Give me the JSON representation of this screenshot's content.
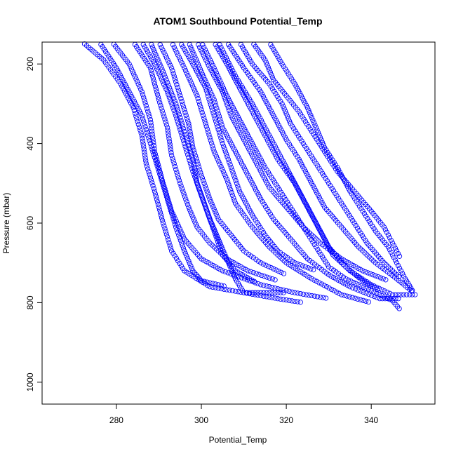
{
  "chart_data": {
    "type": "scatter",
    "title": "ATOM1 Southbound Potential_Temp",
    "xlabel": "Potential_Temp",
    "ylabel": "Pressure (mbar)",
    "xlim": [
      262.5,
      355
    ],
    "ylim": [
      1055,
      145
    ],
    "y_reversed": true,
    "x_ticks": [
      280,
      300,
      320,
      340
    ],
    "y_ticks": [
      200,
      400,
      600,
      800,
      1000
    ],
    "grid": false,
    "legend": "none",
    "marker": "open-circle",
    "color": "#0000ff",
    "series_note": "many vertical profiles; values approximated",
    "series": [
      {
        "points": [
          [
            272,
            145
          ],
          [
            277,
            190
          ],
          [
            281,
            250
          ],
          [
            284,
            310
          ],
          [
            286,
            380
          ],
          [
            287,
            450
          ],
          [
            289,
            520
          ],
          [
            291,
            600
          ],
          [
            293,
            670
          ],
          [
            296,
            720
          ],
          [
            302,
            760
          ],
          [
            310,
            775
          ],
          [
            318,
            790
          ],
          [
            324,
            800
          ]
        ]
      },
      {
        "points": [
          [
            279,
            145
          ],
          [
            283,
            200
          ],
          [
            286,
            270
          ],
          [
            288,
            340
          ],
          [
            289,
            420
          ],
          [
            291,
            500
          ],
          [
            293,
            570
          ],
          [
            296,
            640
          ],
          [
            300,
            690
          ],
          [
            305,
            720
          ],
          [
            314,
            755
          ],
          [
            322,
            775
          ],
          [
            330,
            790
          ]
        ]
      },
      {
        "points": [
          [
            284,
            145
          ],
          [
            288,
            210
          ],
          [
            290,
            290
          ],
          [
            292,
            360
          ],
          [
            293,
            430
          ],
          [
            295,
            500
          ],
          [
            297,
            560
          ],
          [
            299,
            610
          ],
          [
            302,
            650
          ],
          [
            306,
            690
          ],
          [
            311,
            720
          ],
          [
            318,
            745
          ]
        ]
      },
      {
        "points": [
          [
            290,
            145
          ],
          [
            293,
            210
          ],
          [
            295,
            280
          ],
          [
            297,
            350
          ],
          [
            298,
            410
          ],
          [
            300,
            480
          ],
          [
            302,
            540
          ],
          [
            304,
            590
          ],
          [
            307,
            630
          ],
          [
            310,
            670
          ],
          [
            314,
            700
          ],
          [
            320,
            730
          ]
        ]
      },
      {
        "points": [
          [
            286,
            145
          ],
          [
            289,
            200
          ],
          [
            292,
            270
          ],
          [
            294,
            330
          ],
          [
            296,
            400
          ],
          [
            298,
            470
          ],
          [
            300,
            530
          ],
          [
            302,
            590
          ],
          [
            304,
            640
          ],
          [
            306,
            690
          ],
          [
            308,
            740
          ],
          [
            310,
            775
          ],
          [
            320,
            775
          ]
        ]
      },
      {
        "points": [
          [
            295,
            145
          ],
          [
            298,
            200
          ],
          [
            301,
            260
          ],
          [
            303,
            330
          ],
          [
            305,
            400
          ],
          [
            307,
            460
          ],
          [
            309,
            520
          ],
          [
            312,
            580
          ],
          [
            315,
            630
          ],
          [
            318,
            670
          ],
          [
            322,
            700
          ],
          [
            327,
            720
          ]
        ]
      },
      {
        "points": [
          [
            299,
            145
          ],
          [
            302,
            210
          ],
          [
            305,
            270
          ],
          [
            307,
            330
          ],
          [
            310,
            390
          ],
          [
            313,
            450
          ],
          [
            316,
            510
          ],
          [
            320,
            560
          ],
          [
            324,
            610
          ],
          [
            328,
            650
          ],
          [
            333,
            690
          ],
          [
            338,
            720
          ],
          [
            344,
            745
          ]
        ]
      },
      {
        "points": [
          [
            303,
            145
          ],
          [
            306,
            200
          ],
          [
            309,
            260
          ],
          [
            312,
            320
          ],
          [
            315,
            380
          ],
          [
            318,
            440
          ],
          [
            322,
            500
          ],
          [
            325,
            560
          ],
          [
            328,
            620
          ],
          [
            331,
            680
          ],
          [
            335,
            720
          ],
          [
            340,
            755
          ],
          [
            345,
            780
          ],
          [
            351,
            780
          ]
        ]
      },
      {
        "points": [
          [
            306,
            145
          ],
          [
            310,
            210
          ],
          [
            314,
            270
          ],
          [
            317,
            330
          ],
          [
            320,
            390
          ],
          [
            323,
            440
          ],
          [
            326,
            500
          ],
          [
            329,
            560
          ],
          [
            333,
            610
          ],
          [
            337,
            660
          ],
          [
            341,
            700
          ],
          [
            346,
            740
          ],
          [
            350,
            775
          ]
        ]
      },
      {
        "points": [
          [
            309,
            145
          ],
          [
            312,
            200
          ],
          [
            316,
            250
          ],
          [
            319,
            300
          ],
          [
            321,
            350
          ],
          [
            324,
            400
          ],
          [
            327,
            450
          ],
          [
            330,
            500
          ],
          [
            333,
            550
          ],
          [
            336,
            600
          ],
          [
            339,
            650
          ],
          [
            343,
            700
          ],
          [
            347,
            740
          ]
        ]
      },
      {
        "points": [
          [
            312,
            145
          ],
          [
            315,
            190
          ],
          [
            317,
            240
          ],
          [
            320,
            280
          ],
          [
            323,
            320
          ],
          [
            326,
            370
          ],
          [
            329,
            420
          ],
          [
            332,
            470
          ],
          [
            336,
            520
          ],
          [
            340,
            570
          ],
          [
            343,
            610
          ],
          [
            345,
            650
          ],
          [
            347,
            690
          ]
        ]
      },
      {
        "points": [
          [
            316,
            145
          ],
          [
            319,
            200
          ],
          [
            322,
            250
          ],
          [
            325,
            310
          ],
          [
            327,
            360
          ],
          [
            329,
            410
          ],
          [
            332,
            460
          ],
          [
            335,
            520
          ],
          [
            338,
            570
          ],
          [
            341,
            620
          ],
          [
            344,
            660
          ],
          [
            346,
            700
          ],
          [
            348,
            740
          ],
          [
            350,
            775
          ]
        ]
      },
      {
        "points": [
          [
            300,
            145
          ],
          [
            303,
            210
          ],
          [
            306,
            280
          ],
          [
            309,
            340
          ],
          [
            312,
            400
          ],
          [
            315,
            460
          ],
          [
            318,
            510
          ],
          [
            321,
            560
          ],
          [
            324,
            610
          ],
          [
            327,
            660
          ],
          [
            330,
            710
          ],
          [
            334,
            740
          ],
          [
            340,
            770
          ],
          [
            345,
            795
          ],
          [
            347,
            820
          ]
        ]
      },
      {
        "points": [
          [
            293,
            145
          ],
          [
            296,
            210
          ],
          [
            299,
            280
          ],
          [
            301,
            350
          ],
          [
            303,
            420
          ],
          [
            306,
            490
          ],
          [
            308,
            550
          ],
          [
            312,
            610
          ],
          [
            316,
            660
          ],
          [
            320,
            700
          ],
          [
            326,
            740
          ],
          [
            333,
            780
          ],
          [
            340,
            800
          ]
        ]
      },
      {
        "points": [
          [
            297,
            145
          ],
          [
            300,
            220
          ],
          [
            303,
            290
          ],
          [
            305,
            360
          ],
          [
            308,
            420
          ],
          [
            311,
            480
          ],
          [
            314,
            540
          ],
          [
            317,
            590
          ],
          [
            321,
            640
          ],
          [
            325,
            690
          ],
          [
            330,
            730
          ],
          [
            335,
            760
          ],
          [
            342,
            790
          ],
          [
            347,
            790
          ]
        ]
      },
      {
        "points": [
          [
            276,
            145
          ],
          [
            280,
            210
          ],
          [
            283,
            270
          ],
          [
            286,
            330
          ],
          [
            288,
            400
          ],
          [
            290,
            470
          ],
          [
            292,
            540
          ],
          [
            294,
            610
          ],
          [
            296,
            670
          ],
          [
            298,
            720
          ],
          [
            300,
            745
          ],
          [
            306,
            760
          ]
        ]
      },
      {
        "points": [
          [
            304,
            145
          ],
          [
            308,
            230
          ],
          [
            312,
            300
          ],
          [
            315,
            360
          ],
          [
            318,
            420
          ],
          [
            321,
            480
          ],
          [
            324,
            540
          ],
          [
            327,
            600
          ],
          [
            330,
            660
          ],
          [
            334,
            710
          ],
          [
            338,
            745
          ],
          [
            342,
            770
          ]
        ]
      },
      {
        "points": [
          [
            288,
            145
          ],
          [
            291,
            220
          ],
          [
            294,
            300
          ],
          [
            296,
            370
          ],
          [
            298,
            440
          ],
          [
            299,
            500
          ],
          [
            301,
            560
          ],
          [
            303,
            620
          ],
          [
            305,
            680
          ],
          [
            308,
            720
          ],
          [
            313,
            750
          ]
        ]
      }
    ]
  }
}
